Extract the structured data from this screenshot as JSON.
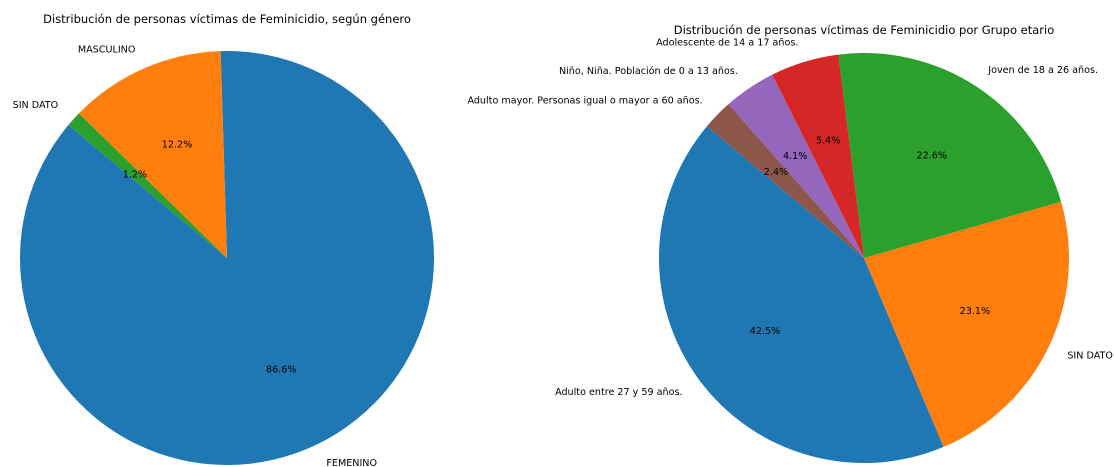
{
  "chart_data": [
    {
      "type": "pie",
      "title": "Distribución de personas víctimas de Feminicidio, según género",
      "slices": [
        {
          "label": "FEMENINO",
          "value": 86.6,
          "pct_label": "86.6%",
          "color": "#1f77b4"
        },
        {
          "label": "MASCULINO",
          "value": 12.2,
          "pct_label": "12.2%",
          "color": "#ff7f0e"
        },
        {
          "label": "SIN DATO",
          "value": 1.2,
          "pct_label": "1.2%",
          "color": "#2ca02c"
        }
      ]
    },
    {
      "type": "pie",
      "title": "Distribución de personas víctimas de Feminicidio por Grupo etario",
      "slices": [
        {
          "label": "Adulto entre 27 y 59 años.",
          "value": 42.5,
          "pct_label": "42.5%",
          "color": "#1f77b4"
        },
        {
          "label": "SIN DATO",
          "value": 23.1,
          "pct_label": "23.1%",
          "color": "#ff7f0e"
        },
        {
          "label": "Joven de 18 a 26 años.",
          "value": 22.6,
          "pct_label": "22.6%",
          "color": "#2ca02c"
        },
        {
          "label": "Adolescente de 14 a 17 años.",
          "value": 5.4,
          "pct_label": "5.4%",
          "color": "#d62728"
        },
        {
          "label": "Niño, Niña. Población de 0 a 13 años.",
          "value": 4.1,
          "pct_label": "4.1%",
          "color": "#9467bd"
        },
        {
          "label": "Adulto mayor. Personas igual o mayor a 60 años.",
          "value": 2.4,
          "pct_label": "2.4%",
          "color": "#8c564b"
        }
      ]
    }
  ]
}
